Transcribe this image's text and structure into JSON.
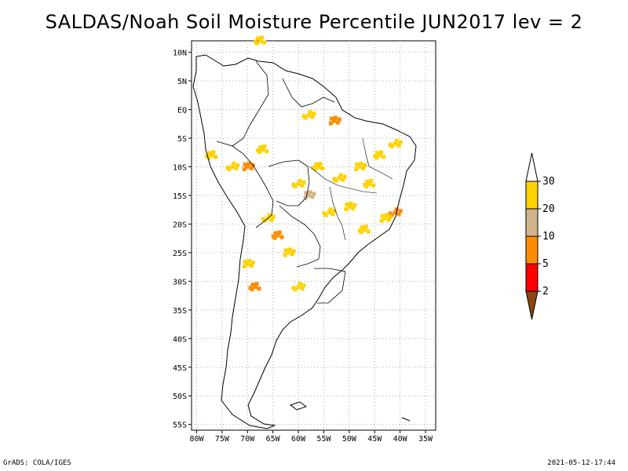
{
  "title": "SALDAS/Noah Soil Moisture Percentile JUN2017 lev = 2",
  "axes": {
    "lat_labels": [
      "10N",
      "5N",
      "EQ",
      "5S",
      "10S",
      "15S",
      "20S",
      "25S",
      "30S",
      "35S",
      "40S",
      "45S",
      "50S",
      "55S"
    ],
    "lat_values": [
      10,
      5,
      0,
      -5,
      -10,
      -15,
      -20,
      -25,
      -30,
      -35,
      -40,
      -45,
      -50,
      -55
    ],
    "lon_labels": [
      "80W",
      "75W",
      "70W",
      "65W",
      "60W",
      "55W",
      "50W",
      "45W",
      "40W",
      "35W"
    ],
    "lon_values": [
      -80,
      -75,
      -70,
      -65,
      -60,
      -55,
      -50,
      -45,
      -40,
      -35
    ],
    "lon_range": [
      -81,
      -33
    ],
    "lat_range": [
      -56,
      12
    ],
    "grid": "dotted"
  },
  "legend": {
    "labels": [
      "30",
      "20",
      "10",
      "5",
      "2"
    ],
    "colors": [
      "#ffd200",
      "#d2b48c",
      "#ff8c00",
      "#ff0000",
      "#8b4513"
    ],
    "top_color": "#ffffff"
  },
  "patches": [
    {
      "lon": -67.5,
      "lat": 12.0,
      "c": "#ffd200"
    },
    {
      "lon": -73.0,
      "lat": -10.0,
      "c": "#ffd200"
    },
    {
      "lon": -70.0,
      "lat": -10.0,
      "c": "#ff8c00"
    },
    {
      "lon": -67.0,
      "lat": -7.0,
      "c": "#ffd200"
    },
    {
      "lon": -60.0,
      "lat": -13.0,
      "c": "#ffd200"
    },
    {
      "lon": -58.0,
      "lat": -15.0,
      "c": "#d2b48c"
    },
    {
      "lon": -56.0,
      "lat": -10.0,
      "c": "#ffd200"
    },
    {
      "lon": -52.0,
      "lat": -12.0,
      "c": "#ffd200"
    },
    {
      "lon": -48.0,
      "lat": -10.0,
      "c": "#ffd200"
    },
    {
      "lon": -44.0,
      "lat": -8.0,
      "c": "#ffd200"
    },
    {
      "lon": -41.0,
      "lat": -6.0,
      "c": "#ffd200"
    },
    {
      "lon": -50.0,
      "lat": -17.0,
      "c": "#ffd200"
    },
    {
      "lon": -46.0,
      "lat": -13.0,
      "c": "#ffd200"
    },
    {
      "lon": -41.0,
      "lat": -18.0,
      "c": "#ff8c00"
    },
    {
      "lon": -43.0,
      "lat": -19.0,
      "c": "#ffd200"
    },
    {
      "lon": -64.0,
      "lat": -22.0,
      "c": "#ff8c00"
    },
    {
      "lon": -66.0,
      "lat": -19.0,
      "c": "#ffd200"
    },
    {
      "lon": -62.0,
      "lat": -25.0,
      "c": "#ffd200"
    },
    {
      "lon": -68.5,
      "lat": -31.0,
      "c": "#ff8c00"
    },
    {
      "lon": -60.0,
      "lat": -31.0,
      "c": "#ffd200"
    },
    {
      "lon": -70.0,
      "lat": -27.0,
      "c": "#ffd200"
    },
    {
      "lon": -77.0,
      "lat": -8.0,
      "c": "#ffd200"
    },
    {
      "lon": -58.0,
      "lat": -1.0,
      "c": "#ffd200"
    },
    {
      "lon": -53.0,
      "lat": -2.0,
      "c": "#ff8c00"
    },
    {
      "lon": -47.0,
      "lat": -21.0,
      "c": "#ffd200"
    },
    {
      "lon": -54.0,
      "lat": -18.0,
      "c": "#ffd200"
    }
  ],
  "footer": {
    "left": "GrADS: COLA/IGES",
    "right": "2021-05-12-17:44"
  }
}
